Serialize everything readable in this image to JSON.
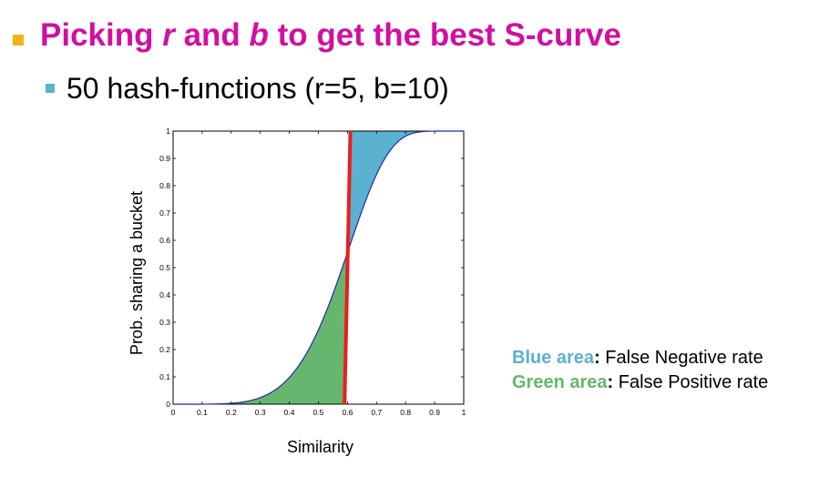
{
  "slide": {
    "title_prefix": "Picking ",
    "title_r": "r",
    "title_and": " and ",
    "title_b": "b",
    "title_suffix": " to get the best S-curve",
    "subtitle": "50 hash-functions (r=5, b=10)",
    "bullet_colors": {
      "title": "#f2b21a",
      "subtitle": "#5bb1d0"
    }
  },
  "legend": {
    "blue_label": "Blue area",
    "blue_desc": "False Negative rate",
    "green_label": "Green area",
    "green_desc": "False Positive rate",
    "separator": ":"
  },
  "chart_data": {
    "type": "line",
    "title": "",
    "xlabel": "Similarity",
    "ylabel": "Prob. sharing a bucket",
    "xlim": [
      0,
      1
    ],
    "ylim": [
      0,
      1
    ],
    "x_ticks": [
      "0",
      "0.1",
      "0.2",
      "0.3",
      "0.4",
      "0.5",
      "0.6",
      "0.7",
      "0.8",
      "0.9",
      "1"
    ],
    "y_ticks": [
      "0",
      "0.1",
      "0.2",
      "0.3",
      "0.4",
      "0.5",
      "0.6",
      "0.7",
      "0.8",
      "0.9",
      "1"
    ],
    "grid": false,
    "series": [
      {
        "kind": "s-curve",
        "formula": "1-(1-s^5)^10",
        "r": 5,
        "b": 10,
        "color": "#1f28b4",
        "x": [
          0.0,
          0.1,
          0.2,
          0.25,
          0.3,
          0.35,
          0.4,
          0.45,
          0.5,
          0.55,
          0.6,
          0.65,
          0.7,
          0.75,
          0.8,
          0.85,
          0.9,
          0.95,
          1.0
        ],
        "y": [
          0.0,
          0.0001,
          0.0032,
          0.0097,
          0.024,
          0.0511,
          0.0978,
          0.1701,
          0.272,
          0.4013,
          0.5498,
          0.7018,
          0.8389,
          0.937,
          0.9864,
          0.9986,
          0.99996,
          1.0,
          1.0
        ]
      },
      {
        "kind": "step-threshold",
        "color": "#ee1c1c",
        "x": [
          0.59,
          0.61
        ],
        "y": [
          0,
          1
        ]
      }
    ],
    "areas": [
      {
        "name": "Blue area",
        "color": "#5bb1d0",
        "meaning": "False Negative rate"
      },
      {
        "name": "Green area",
        "color": "#66b66e",
        "meaning": "False Positive rate"
      }
    ]
  }
}
